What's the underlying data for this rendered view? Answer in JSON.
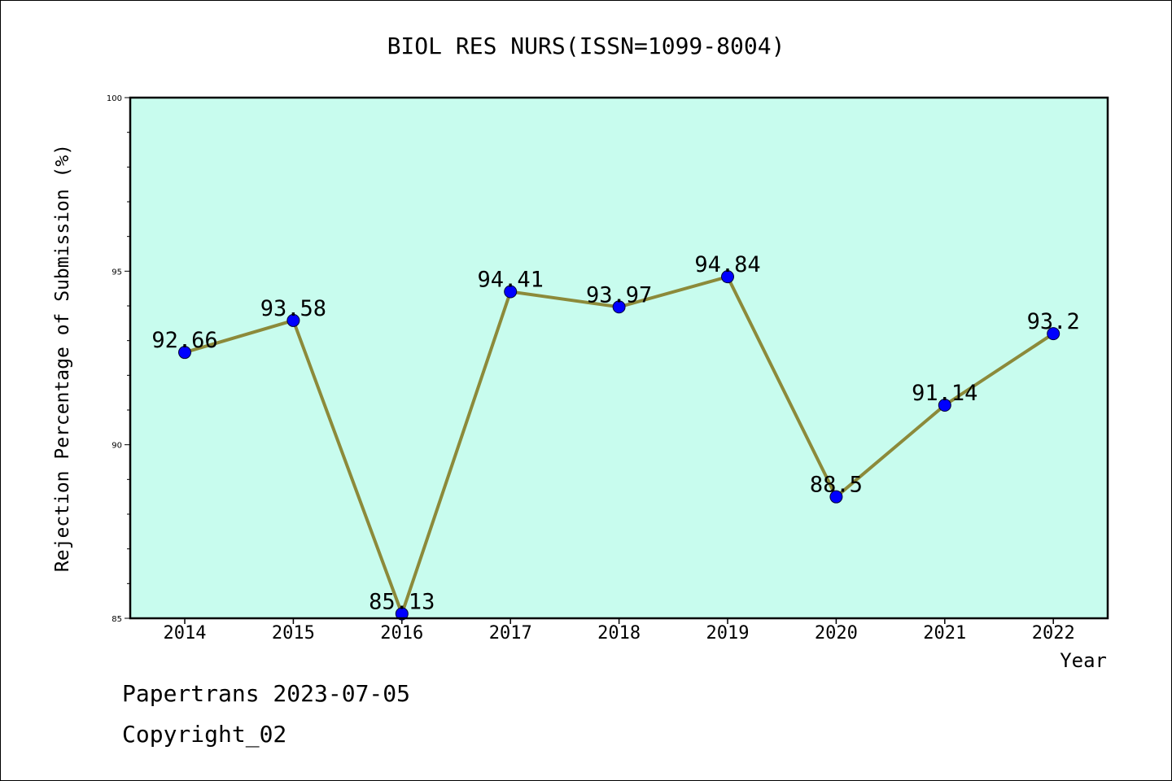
{
  "chart_data": {
    "type": "line",
    "title": "BIOL RES NURS(ISSN=1099-8004)",
    "xlabel": "Year",
    "ylabel": "Rejection Percentage of Submission (%)",
    "categories": [
      "2014",
      "2015",
      "2016",
      "2017",
      "2018",
      "2019",
      "2020",
      "2021",
      "2022"
    ],
    "values": [
      92.66,
      93.58,
      85.13,
      94.41,
      93.97,
      94.84,
      88.5,
      91.14,
      93.2
    ],
    "data_labels": [
      "92.66",
      "93.58",
      "85.13",
      "94.41",
      "93.97",
      "94.84",
      "88.5",
      "91.14",
      "93.2"
    ],
    "ylim": [
      85,
      100
    ],
    "yticks": [
      "85",
      "90",
      "95",
      "100"
    ],
    "grid": false,
    "colors": {
      "plot_background": "#c8fcee",
      "line": "#8c8a3a",
      "marker": "#0000ff"
    }
  },
  "footer": {
    "line1": "Papertrans 2023-07-05",
    "line2": "Copyright_02"
  }
}
